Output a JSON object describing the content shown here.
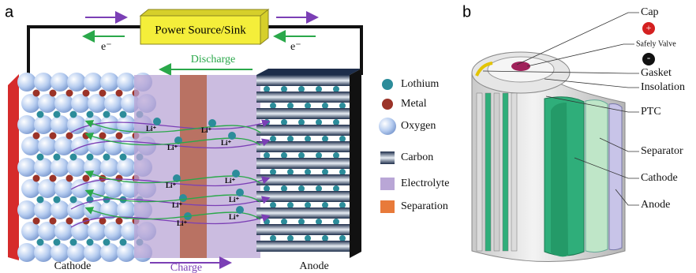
{
  "panel_a": {
    "label": "a",
    "power": "Power Source/Sink",
    "electron_left": "e⁻",
    "electron_right": "e⁻",
    "discharge": "Discharge",
    "charge": "Charge",
    "cathode": "Cathode",
    "anode": "Anode",
    "legend": [
      "Lothium",
      "Metal",
      "Oxygen",
      "Carbon",
      "Electrolyte",
      "Separation"
    ],
    "ions": [
      "Li⁺",
      "Li⁺",
      "Li⁺",
      "Li⁺",
      "Li⁺",
      "Li⁺",
      "Li⁺",
      "Li⁺",
      "Li⁺",
      "Li⁺"
    ]
  },
  "panel_b": {
    "label": "b",
    "plus": "+",
    "minus": "-",
    "labels": [
      "Cap",
      "Safely Valve",
      "Gasket",
      "Insolation",
      "PTC",
      "Separator",
      "Cathode",
      "Anode"
    ]
  }
}
